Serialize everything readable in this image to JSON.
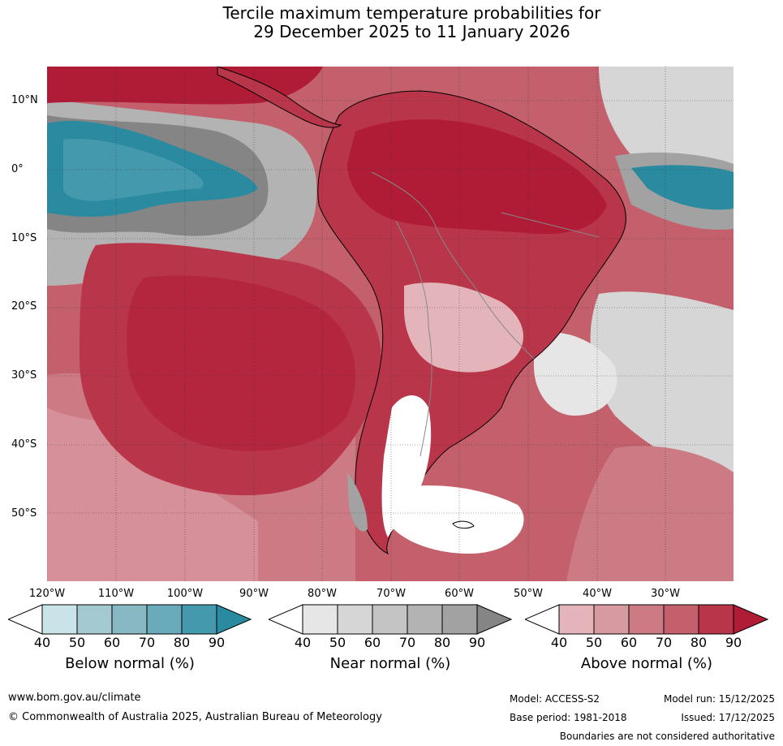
{
  "title": {
    "line1": "Tercile maximum temperature probabilities for",
    "line2": "29 December 2025 to 11 January 2026"
  },
  "map": {
    "latitude_labels": [
      "10°N",
      "0°",
      "10°S",
      "20°S",
      "30°S",
      "40°S",
      "50°S"
    ],
    "longitude_labels": [
      "120°W",
      "110°W",
      "100°W",
      "90°W",
      "80°W",
      "70°W",
      "60°W",
      "50°W",
      "40°W",
      "30°W"
    ]
  },
  "colorbars": [
    {
      "title": "Below normal (%)",
      "ticks": [
        "40",
        "50",
        "60",
        "70",
        "80",
        "90"
      ],
      "colors": [
        "#c9e3e9",
        "#a5c9d0",
        "#88b9c2",
        "#69aabb",
        "#4499ac",
        "#2a8aa0"
      ]
    },
    {
      "title": "Near normal (%)",
      "ticks": [
        "40",
        "50",
        "60",
        "70",
        "80",
        "90"
      ],
      "colors": [
        "#e6e6e6",
        "#d6d6d6",
        "#c4c4c4",
        "#b3b3b3",
        "#a2a2a2",
        "#858585"
      ]
    },
    {
      "title": "Above normal (%)",
      "ticks": [
        "40",
        "50",
        "60",
        "70",
        "80",
        "90"
      ],
      "colors": [
        "#e3b5ba",
        "#d89aa1",
        "#cc7b85",
        "#c4606b",
        "#b93549",
        "#b01c36"
      ]
    }
  ],
  "footer": {
    "url": "www.bom.gov.au/climate",
    "copyright": "© Commonwealth of Australia 2025, Australian Bureau of Meteorology",
    "model": "Model: ACCESS-S2",
    "base_period": "Base period: 1981-2018",
    "model_run": "Model run: 15/12/2025",
    "issued": "Issued: 17/12/2025",
    "disclaimer": "Boundaries are not considered authoritative"
  }
}
